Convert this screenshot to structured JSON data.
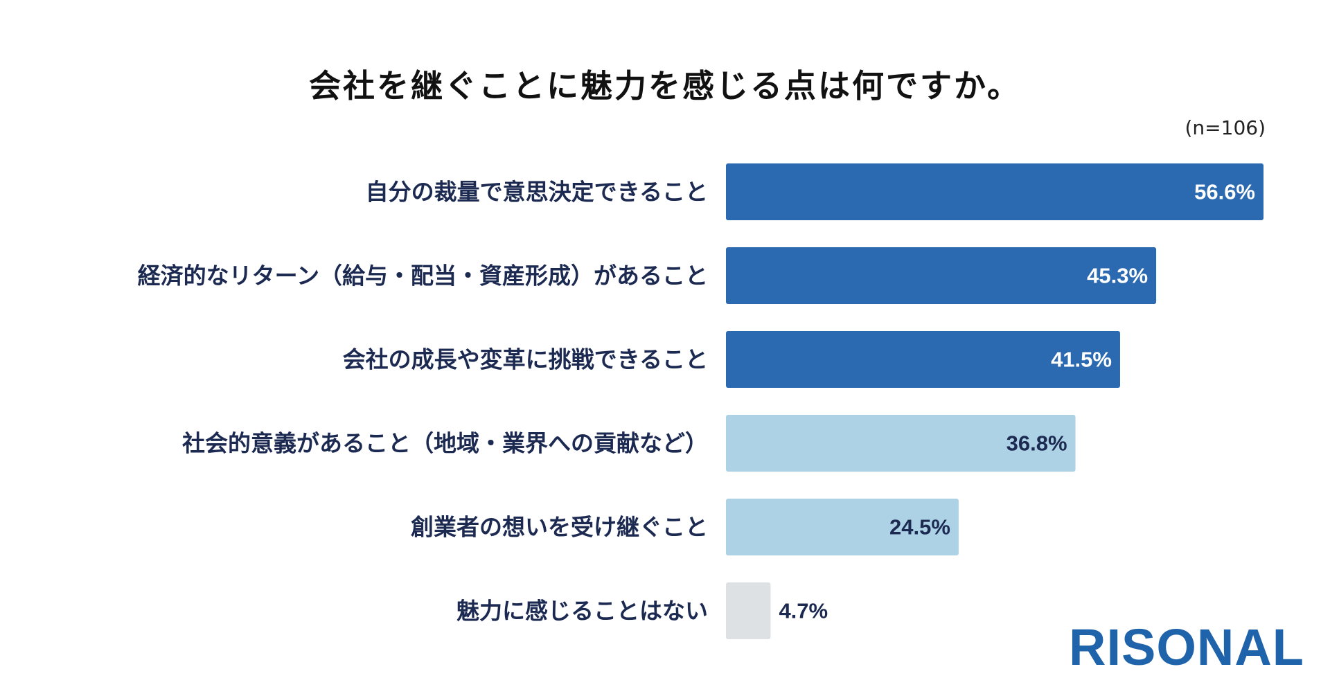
{
  "chart_data": {
    "type": "bar",
    "orientation": "horizontal",
    "title": "会社を継ぐことに魅力を感じる点は何ですか。",
    "sample_size": "(n=106)",
    "categories": [
      "自分の裁量で意思決定できること",
      "経済的なリターン（給与・配当・資産形成）があること",
      "会社の成長や変革に挑戦できること",
      "社会的意義があること（地域・業界への貢献など）",
      "創業者の想いを受け継ぐこと",
      "魅力に感じることはない"
    ],
    "values": [
      56.6,
      45.3,
      41.5,
      36.8,
      24.5,
      4.7
    ],
    "value_labels": [
      "56.6%",
      "45.3%",
      "41.5%",
      "36.8%",
      "24.5%",
      "4.7%"
    ],
    "xlim": [
      0,
      56.6
    ],
    "grid": false,
    "bar_colors": [
      "#2b69b0",
      "#2b69b0",
      "#2b69b0",
      "#add1e5",
      "#add1e5",
      "#dde1e4"
    ],
    "value_label_colors": [
      "#ffffff",
      "#ffffff",
      "#ffffff",
      "#1c2a52",
      "#1c2a52",
      "#1c2a52"
    ]
  },
  "brand": {
    "logo_text": "RISONAL",
    "logo_color": "#1f63aa"
  }
}
